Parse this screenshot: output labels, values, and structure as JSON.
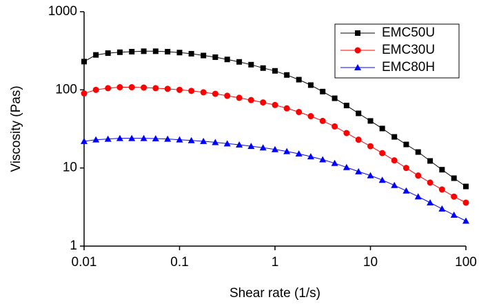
{
  "chart_data": {
    "type": "line",
    "x_label": "Shear rate (1/s)",
    "y_label": "Viscosity (Pas)",
    "x": [
      0.01,
      0.0133,
      0.0178,
      0.0237,
      0.0316,
      0.0422,
      0.0562,
      0.075,
      0.1,
      0.133,
      0.178,
      0.237,
      0.316,
      0.422,
      0.562,
      0.75,
      1,
      1.33,
      1.78,
      2.37,
      3.16,
      4.22,
      5.62,
      7.5,
      10,
      13.3,
      17.8,
      23.7,
      31.6,
      42.2,
      56.2,
      75,
      100
    ],
    "series": [
      {
        "name": "EMC50U",
        "color": "#000000",
        "marker": "square",
        "values": [
          230,
          280,
          295,
          303,
          308,
          312,
          312,
          308,
          300,
          290,
          275,
          262,
          245,
          228,
          210,
          190,
          175,
          155,
          135,
          115,
          95,
          78,
          63,
          50,
          40,
          32,
          25,
          20,
          16,
          12.3,
          9.5,
          7.4,
          5.8
        ]
      },
      {
        "name": "EMC30U",
        "color": "#ff0000",
        "marker": "circle",
        "values": [
          90,
          100,
          105,
          108,
          108,
          107,
          105,
          103,
          100,
          97,
          93,
          89,
          84,
          79,
          74,
          69,
          64,
          58,
          52,
          46,
          40,
          34,
          28,
          23,
          19,
          15.5,
          12.5,
          10,
          8,
          6.5,
          5.3,
          4.3,
          3.6
        ]
      },
      {
        "name": "EMC80H",
        "color": "#0000ff",
        "marker": "triangle",
        "values": [
          22,
          23,
          23.5,
          24,
          24,
          24,
          23.8,
          23.5,
          23,
          22.5,
          22,
          21.3,
          20.5,
          19.8,
          19,
          18.2,
          17.3,
          16.3,
          15.2,
          14,
          12.8,
          11.5,
          10.2,
          9,
          8,
          7,
          6,
          5.1,
          4.3,
          3.6,
          3,
          2.5,
          2.1
        ]
      }
    ],
    "xlim": [
      0.01,
      100
    ],
    "ylim": [
      1,
      1000
    ],
    "xticks": [
      0.01,
      0.1,
      1,
      10,
      100
    ],
    "yticks": [
      1,
      10,
      100,
      1000
    ],
    "xscale": "log",
    "yscale": "log",
    "legend": "upper right"
  }
}
